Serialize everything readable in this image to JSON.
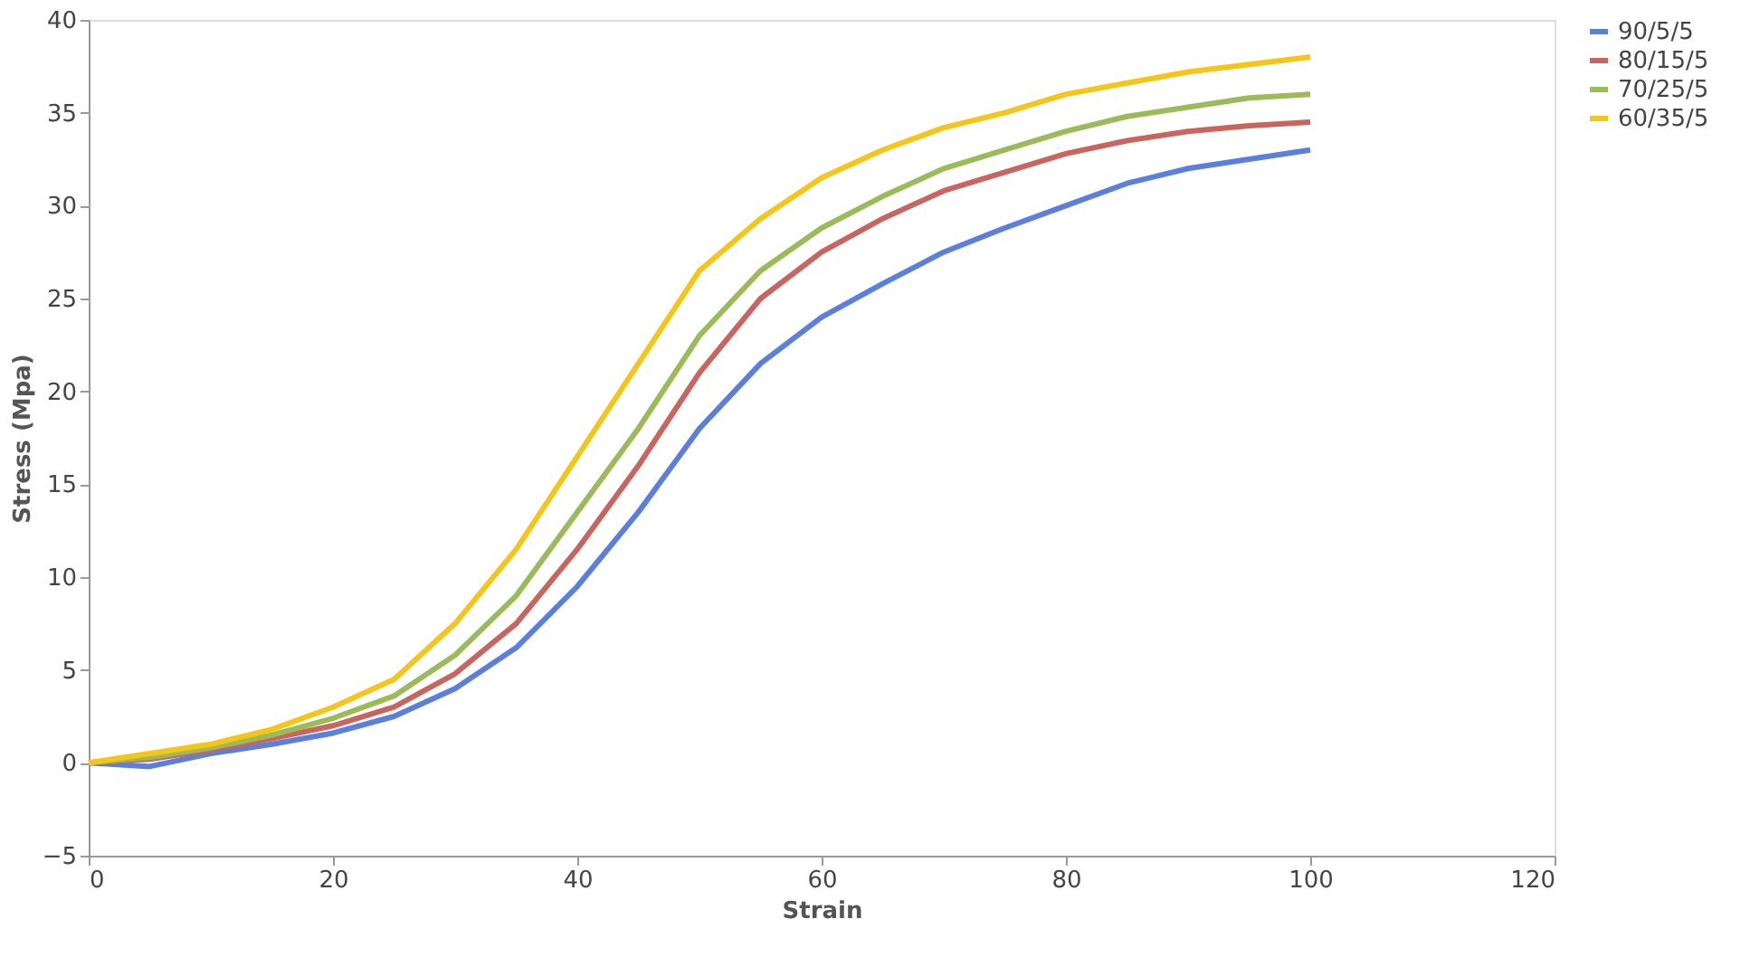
{
  "chart_data": {
    "type": "line",
    "xlabel": "Strain",
    "ylabel": "Stress (Mpa)",
    "x": [
      0,
      5,
      10,
      15,
      20,
      25,
      30,
      35,
      40,
      45,
      50,
      55,
      60,
      65,
      70,
      75,
      80,
      85,
      90,
      95,
      100
    ],
    "series": [
      {
        "name": "90/5/5",
        "color": "#5b7fdc",
        "values": [
          0,
          -0.2,
          0.5,
          1,
          1.6,
          2.5,
          4,
          6.2,
          9.5,
          13.5,
          18,
          21.5,
          24,
          25.8,
          27.5,
          28.8,
          30,
          31.2,
          32,
          32.5,
          33
        ]
      },
      {
        "name": "80/15/5",
        "color": "#c9645e",
        "values": [
          0,
          0.2,
          0.7,
          1.3,
          2,
          3,
          4.8,
          7.5,
          11.5,
          16,
          21,
          25,
          27.5,
          29.3,
          30.8,
          31.8,
          32.8,
          33.5,
          34,
          34.3,
          34.5
        ]
      },
      {
        "name": "70/25/5",
        "color": "#9bbb59",
        "values": [
          0,
          0.3,
          0.8,
          1.5,
          2.4,
          3.6,
          5.8,
          9,
          13.5,
          18,
          23,
          26.5,
          28.8,
          30.5,
          32,
          33,
          34,
          34.8,
          35.3,
          35.8,
          36
        ]
      },
      {
        "name": "60/35/5",
        "color": "#f5c518",
        "values": [
          0,
          0.5,
          1,
          1.8,
          3,
          4.5,
          7.5,
          11.5,
          16.5,
          21.5,
          26.5,
          29.3,
          31.5,
          33,
          34.2,
          35,
          36,
          36.6,
          37.2,
          37.6,
          38
        ]
      }
    ],
    "xlim": [
      0,
      120
    ],
    "xticks": [
      0,
      20,
      40,
      60,
      80,
      100,
      120
    ],
    "ylim": [
      -5,
      40
    ],
    "yticks": [
      -5,
      0,
      5,
      10,
      15,
      20,
      25,
      30,
      35,
      40
    ],
    "grid": false,
    "legend": "right",
    "line_style": "solid",
    "marker": "none"
  }
}
